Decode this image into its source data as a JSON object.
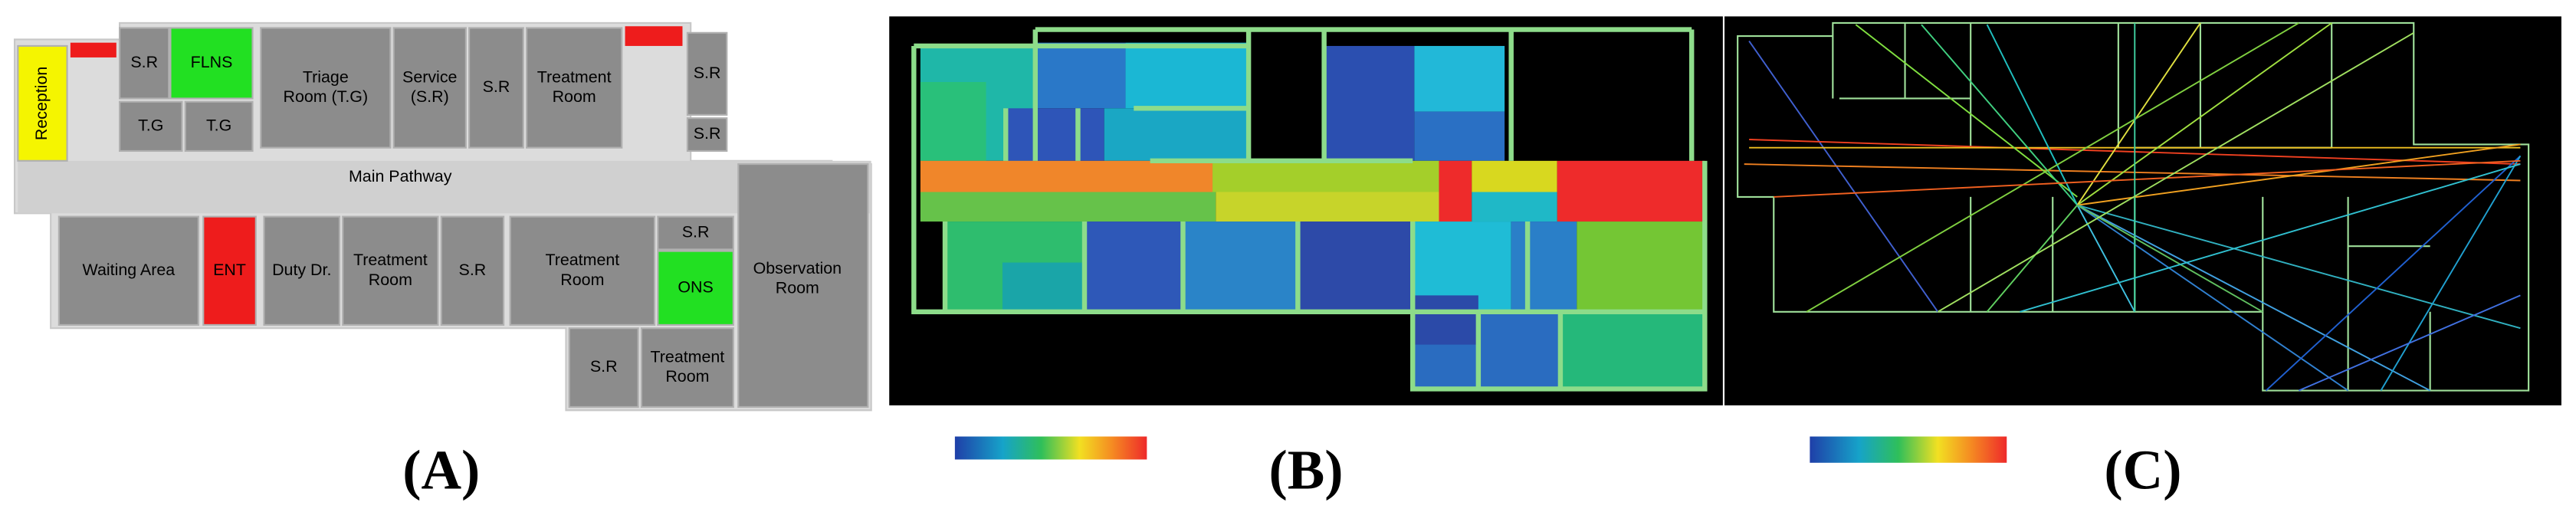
{
  "panels": [
    {
      "label": "(A)",
      "rooms": [
        {
          "lines": [
            "Reception"
          ]
        },
        {
          "lines": [
            "S.R"
          ]
        },
        {
          "lines": [
            "FLNS"
          ]
        },
        {
          "lines": [
            "T.G"
          ]
        },
        {
          "lines": [
            "T.G"
          ]
        },
        {
          "lines": [
            "Triage",
            "Room (T.G)"
          ]
        },
        {
          "lines": [
            "Service",
            "(S.R)"
          ]
        },
        {
          "lines": [
            "S.R"
          ]
        },
        {
          "lines": [
            "Treatment",
            "Room"
          ]
        },
        {
          "lines": [
            "S.R"
          ]
        },
        {
          "lines": [
            "S.R"
          ]
        },
        {
          "lines": [
            "Main Pathway"
          ]
        },
        {
          "lines": [
            "Waiting Area"
          ]
        },
        {
          "lines": [
            "ENT"
          ]
        },
        {
          "lines": [
            "Duty Dr."
          ]
        },
        {
          "lines": [
            "Treatment",
            "Room"
          ]
        },
        {
          "lines": [
            "S.R"
          ]
        },
        {
          "lines": [
            "Treatment",
            "Room"
          ]
        },
        {
          "lines": [
            "S.R"
          ]
        },
        {
          "lines": [
            "ONS"
          ]
        },
        {
          "lines": [
            "Observation",
            "Room"
          ]
        },
        {
          "lines": [
            "S.R"
          ]
        },
        {
          "lines": [
            "Treatment",
            "Room"
          ]
        }
      ]
    },
    {
      "label": "(B)"
    },
    {
      "label": "(C)"
    }
  ]
}
